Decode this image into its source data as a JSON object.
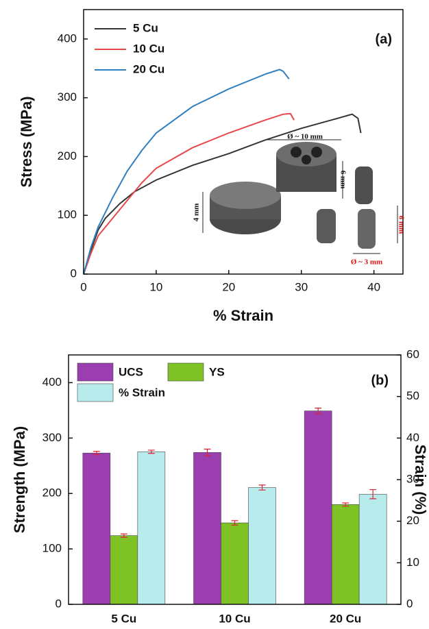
{
  "chart_data": [
    {
      "type": "line",
      "label": "(a)",
      "x_label": "% Strain",
      "y_label": "Stress (MPa)",
      "xlim": [
        0,
        44
      ],
      "xticks": [
        0,
        10,
        20,
        30,
        40
      ],
      "ylim": [
        0,
        450
      ],
      "yticks": [
        0,
        100,
        200,
        300,
        400
      ],
      "legend": "upper left",
      "inset_labels": [
        "Ø ~ 10 mm",
        "6 mm",
        "4 mm",
        "6 mm",
        "Ø ~ 3 mm"
      ],
      "series": [
        {
          "name": "5 Cu",
          "color": "#333333",
          "x": [
            0,
            1,
            2,
            3,
            5,
            7,
            10,
            15,
            20,
            25,
            30,
            35,
            37,
            37.8,
            38.2
          ],
          "values": [
            0,
            40,
            75,
            95,
            120,
            140,
            160,
            185,
            205,
            228,
            248,
            265,
            272,
            265,
            240
          ]
        },
        {
          "name": "10 Cu",
          "color": "#e8474a",
          "x": [
            0,
            1,
            2,
            4,
            6,
            8,
            10,
            15,
            20,
            25,
            27.5,
            28.5,
            29
          ],
          "values": [
            0,
            35,
            65,
            95,
            125,
            155,
            180,
            215,
            240,
            262,
            272,
            273,
            262
          ]
        },
        {
          "name": "20 Cu",
          "color": "#2f7fc1",
          "x": [
            0,
            1,
            2,
            4,
            6,
            8,
            10,
            15,
            20,
            25,
            27,
            27.5,
            28.3
          ],
          "values": [
            0,
            45,
            80,
            130,
            175,
            210,
            240,
            285,
            315,
            340,
            348,
            345,
            332
          ]
        }
      ]
    },
    {
      "type": "bar",
      "label": "(b)",
      "y_label": "Strength (MPa)",
      "y2_label": "Strain (%)",
      "categories": [
        "5 Cu",
        "10 Cu",
        "20 Cu"
      ],
      "ylim": [
        0,
        450
      ],
      "yticks": [
        0,
        100,
        200,
        300,
        400
      ],
      "y2lim": [
        0,
        60
      ],
      "y2ticks": [
        0,
        10,
        20,
        30,
        40,
        50,
        60
      ],
      "legend": "upper left",
      "series": [
        {
          "name": "UCS",
          "color": "#9b3fb0",
          "values": [
            273,
            274,
            349
          ],
          "errors": [
            3,
            6,
            5
          ]
        },
        {
          "name": "YS",
          "color": "#7ec225",
          "values": [
            124,
            147,
            180
          ],
          "errors": [
            3,
            4,
            3
          ]
        },
        {
          "name": "% Strain",
          "color": "#b8ecec",
          "axis": "y2",
          "values": [
            36.7,
            28.1,
            26.5
          ],
          "errors": [
            0.4,
            0.6,
            1.1
          ]
        }
      ]
    }
  ]
}
